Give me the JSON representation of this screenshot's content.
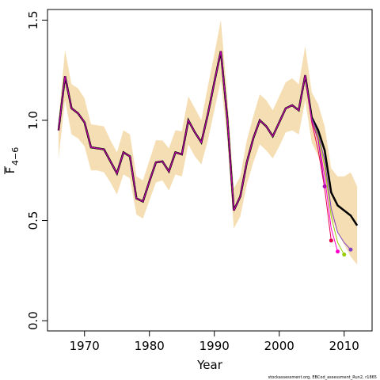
{
  "chart_data": {
    "type": "line",
    "xlabel": "Year",
    "ylabel": {
      "symbol": "F",
      "subscript": "4−6"
    },
    "footnote": "stockassessment.org, EBCod_assessment_Run2, r1865",
    "xlim": [
      1964.3,
      2014.3
    ],
    "ylim": [
      -0.051,
      1.553
    ],
    "xticks": [
      1970,
      1980,
      1990,
      2000,
      2010
    ],
    "yticks": [
      {
        "value": 0,
        "label": "0.0"
      },
      {
        "value": 0.5,
        "label": "0.5"
      },
      {
        "value": 1,
        "label": "1.0"
      },
      {
        "value": 1.5,
        "label": "1.5"
      }
    ],
    "x": [
      1966,
      1967,
      1968,
      1969,
      1970,
      1971,
      1972,
      1973,
      1974,
      1975,
      1976,
      1977,
      1978,
      1979,
      1980,
      1981,
      1982,
      1983,
      1984,
      1985,
      1986,
      1987,
      1988,
      1989,
      1990,
      1991,
      1992,
      1993,
      1994,
      1995,
      1996,
      1997,
      1998,
      1999,
      2000,
      2001,
      2002,
      2003,
      2004,
      2005,
      2006,
      2007,
      2008,
      2009,
      2010,
      2011,
      2012
    ],
    "band": {
      "color": "#f5deb3",
      "upper": [
        1.0,
        1.35,
        1.18,
        1.16,
        1.11,
        0.98,
        0.975,
        0.97,
        0.9,
        0.84,
        0.95,
        0.93,
        0.72,
        0.7,
        0.8,
        0.9,
        0.9,
        0.86,
        0.95,
        0.945,
        1.12,
        1.06,
        1.0,
        1.17,
        1.33,
        1.5,
        1.12,
        0.66,
        0.72,
        0.9,
        1.02,
        1.13,
        1.1,
        1.05,
        1.12,
        1.19,
        1.21,
        1.18,
        1.37,
        1.14,
        1.08,
        0.97,
        0.76,
        0.72,
        0.72,
        0.74,
        0.67
      ],
      "lower": [
        0.81,
        1.1,
        0.93,
        0.91,
        0.87,
        0.75,
        0.75,
        0.74,
        0.69,
        0.63,
        0.73,
        0.71,
        0.53,
        0.51,
        0.6,
        0.69,
        0.7,
        0.65,
        0.73,
        0.72,
        0.88,
        0.82,
        0.78,
        0.9,
        1.05,
        1.2,
        0.9,
        0.46,
        0.52,
        0.68,
        0.79,
        0.88,
        0.85,
        0.81,
        0.87,
        0.94,
        0.95,
        0.93,
        1.1,
        0.89,
        0.82,
        0.73,
        0.52,
        0.44,
        0.38,
        0.32,
        0.28
      ]
    },
    "series": [
      {
        "color": "#000000",
        "values": [
          0.95,
          1.22,
          1.06,
          1.035,
          0.99,
          0.865,
          0.86,
          0.855,
          0.795,
          0.735,
          0.84,
          0.82,
          0.61,
          0.595,
          0.695,
          0.79,
          0.795,
          0.745,
          0.84,
          0.83,
          1.0,
          0.94,
          0.89,
          1.03,
          1.19,
          1.345,
          1.01,
          0.55,
          0.62,
          0.79,
          0.91,
          1.0,
          0.97,
          0.92,
          0.99,
          1.06,
          1.075,
          1.05,
          1.225,
          1.015,
          0.95,
          0.85,
          0.64,
          0.575,
          0.55,
          0.525,
          0.475
        ]
      },
      {
        "color": "#8040c0",
        "values": [
          0.95,
          1.22,
          1.06,
          1.035,
          0.99,
          0.865,
          0.86,
          0.855,
          0.795,
          0.735,
          0.84,
          0.82,
          0.61,
          0.595,
          0.695,
          0.79,
          0.795,
          0.745,
          0.84,
          0.83,
          1.0,
          0.94,
          0.89,
          1.03,
          1.19,
          1.345,
          1.01,
          0.55,
          0.62,
          0.79,
          0.91,
          1.0,
          0.97,
          0.92,
          0.99,
          1.06,
          1.075,
          1.05,
          1.225,
          1.01,
          0.93,
          0.8,
          0.56,
          0.44,
          0.39,
          0.355,
          null
        ]
      },
      {
        "color": "#99cc00",
        "values": [
          0.95,
          1.22,
          1.06,
          1.035,
          0.99,
          0.865,
          0.86,
          0.855,
          0.795,
          0.735,
          0.84,
          0.82,
          0.61,
          0.595,
          0.695,
          0.79,
          0.795,
          0.745,
          0.84,
          0.83,
          1.0,
          0.94,
          0.89,
          1.03,
          1.19,
          1.345,
          1.01,
          0.55,
          0.62,
          0.79,
          0.91,
          1.0,
          0.97,
          0.92,
          0.99,
          1.06,
          1.075,
          1.05,
          1.225,
          1.0,
          0.92,
          0.77,
          0.52,
          0.39,
          0.33,
          null,
          null
        ]
      },
      {
        "color": "#ff00cc",
        "values": [
          0.95,
          1.22,
          1.06,
          1.035,
          0.99,
          0.865,
          0.86,
          0.855,
          0.795,
          0.735,
          0.84,
          0.82,
          0.61,
          0.595,
          0.695,
          0.79,
          0.795,
          0.745,
          0.84,
          0.83,
          1.0,
          0.94,
          0.89,
          1.03,
          1.19,
          1.345,
          1.01,
          0.55,
          0.62,
          0.79,
          0.91,
          1.0,
          0.97,
          0.92,
          0.99,
          1.06,
          1.075,
          1.05,
          1.225,
          1.0,
          0.9,
          0.72,
          0.46,
          0.345,
          null,
          null,
          null
        ]
      },
      {
        "color": "#e6004c",
        "values": [
          0.95,
          1.22,
          1.06,
          1.035,
          0.99,
          0.865,
          0.86,
          0.855,
          0.795,
          0.735,
          0.84,
          0.82,
          0.61,
          0.595,
          0.695,
          0.79,
          0.795,
          0.745,
          0.84,
          0.83,
          1.0,
          0.94,
          0.89,
          1.03,
          1.19,
          1.345,
          1.01,
          0.55,
          0.62,
          0.79,
          0.91,
          1.0,
          0.97,
          0.92,
          0.99,
          1.06,
          1.075,
          1.05,
          1.225,
          0.99,
          0.85,
          0.66,
          0.4,
          null,
          null,
          null,
          null
        ]
      },
      {
        "color": "#b000b0",
        "values": [
          0.95,
          1.22,
          1.06,
          1.035,
          0.99,
          0.865,
          0.86,
          0.855,
          0.795,
          0.735,
          0.84,
          0.82,
          0.61,
          0.595,
          0.695,
          0.79,
          0.795,
          0.745,
          0.84,
          0.83,
          1.0,
          0.94,
          0.89,
          1.03,
          1.19,
          1.345,
          1.01,
          0.55,
          0.62,
          0.79,
          0.91,
          1.0,
          0.97,
          0.92,
          0.99,
          1.06,
          1.075,
          1.05,
          1.225,
          1.0,
          0.9,
          0.67,
          null,
          null,
          null,
          null,
          null
        ]
      }
    ]
  }
}
